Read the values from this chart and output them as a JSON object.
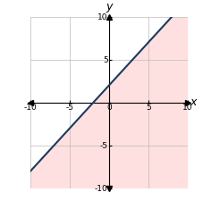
{
  "xlim": [
    -10,
    10
  ],
  "ylim": [
    -10,
    10
  ],
  "xticks": [
    -10,
    -5,
    0,
    5,
    10
  ],
  "yticks": [
    -10,
    -5,
    5,
    10
  ],
  "line_slope": 1,
  "line_intercept": 2,
  "line_color": "#1a3a5c",
  "line_width": 1.5,
  "shade_color": "#ffcccc",
  "shade_alpha": 0.6,
  "grid_color": "#bbbbbb",
  "grid_linewidth": 0.5,
  "xlabel": "x",
  "ylabel": "y",
  "tick_fontsize": 6.5,
  "label_fontsize": 9
}
